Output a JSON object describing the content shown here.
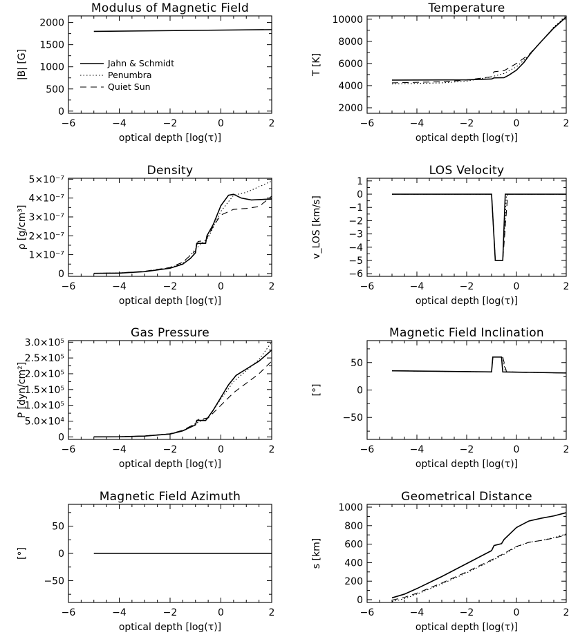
{
  "chart_data": [
    {
      "type": "line",
      "title": "Modulus of Magnetic Field",
      "xlabel": "optical depth [log(τ)]",
      "ylabel": "|B| [G]",
      "xlim": [
        -6,
        2
      ],
      "ylim": [
        -50,
        2150
      ],
      "xticks": [
        -6,
        -4,
        -2,
        0,
        2
      ],
      "yticks": [
        0,
        500,
        1000,
        1500,
        2000
      ],
      "ytick_labels": [
        "0",
        "500",
        "1000",
        "1500",
        "2000"
      ],
      "legend": {
        "placement": "left-middle",
        "entries": [
          {
            "name": "Jahn & Schmidt",
            "style": "solid"
          },
          {
            "name": "Penumbra",
            "style": "dotted"
          },
          {
            "name": "Quiet Sun",
            "style": "dashed"
          }
        ]
      },
      "series": [
        {
          "style": "solid",
          "x": [
            -5,
            2
          ],
          "y": [
            1800,
            1840
          ]
        }
      ]
    },
    {
      "type": "line",
      "title": "Temperature",
      "xlabel": "optical depth [log(τ)]",
      "ylabel": "T [K]",
      "xlim": [
        -6,
        2
      ],
      "ylim": [
        1500,
        10300
      ],
      "xticks": [
        -6,
        -4,
        -2,
        0,
        2
      ],
      "yticks": [
        2000,
        4000,
        6000,
        8000,
        10000
      ],
      "ytick_labels": [
        "2000",
        "4000",
        "6000",
        "8000",
        "10000"
      ],
      "series": [
        {
          "style": "solid",
          "x": [
            -5,
            -2,
            -1,
            -0.9,
            -0.5,
            -0.3,
            0,
            0.3,
            0.6,
            1,
            1.5,
            2
          ],
          "y": [
            4500,
            4520,
            4600,
            4700,
            4720,
            4950,
            5400,
            6100,
            7000,
            8000,
            9200,
            10200
          ]
        },
        {
          "style": "dotted",
          "x": [
            -5,
            -3,
            -2,
            -1,
            -0.5,
            0,
            0.5,
            1,
            1.5,
            2
          ],
          "y": [
            4150,
            4250,
            4400,
            4800,
            5100,
            5700,
            6700,
            8000,
            9300,
            10300
          ]
        },
        {
          "style": "dashed",
          "x": [
            -5,
            -3,
            -2,
            -1,
            -0.9,
            -0.5,
            -0.3,
            0,
            0.5,
            1,
            1.5,
            2
          ],
          "y": [
            4250,
            4350,
            4500,
            4800,
            5250,
            5350,
            5600,
            6000,
            6800,
            8000,
            9200,
            10200
          ]
        }
      ]
    },
    {
      "type": "line",
      "title": "Density",
      "xlabel": "optical depth [log(τ)]",
      "ylabel": "ρ [g/cm³]",
      "xlim": [
        -6,
        2
      ],
      "ylim": [
        -1.5e-08,
        5.05e-07
      ],
      "xticks": [
        -6,
        -4,
        -2,
        0,
        2
      ],
      "yticks": [
        0,
        1e-07,
        2e-07,
        3e-07,
        4e-07,
        5e-07
      ],
      "ytick_labels": [
        "0",
        "1×10⁻⁷",
        "2×10⁻⁷",
        "3×10⁻⁷",
        "4×10⁻⁷",
        "5×10⁻⁷"
      ],
      "series": [
        {
          "style": "solid",
          "x": [
            -5,
            -4,
            -3,
            -2,
            -1.5,
            -1.2,
            -1,
            -0.95,
            -0.6,
            -0.55,
            -0.3,
            0,
            0.3,
            0.5,
            0.8,
            1.2,
            2
          ],
          "y": [
            1e-09,
            2e-09,
            1e-08,
            2.8e-08,
            5e-08,
            8e-08,
            1.1e-07,
            1.6e-07,
            1.6e-07,
            2e-07,
            2.6e-07,
            3.6e-07,
            4.15e-07,
            4.2e-07,
            4e-07,
            3.9e-07,
            3.95e-07
          ]
        },
        {
          "style": "dotted",
          "x": [
            -5,
            -4,
            -3,
            -2,
            -1.5,
            -1,
            -0.5,
            0,
            0.5,
            1,
            2
          ],
          "y": [
            1e-09,
            3e-09,
            1.1e-08,
            3e-08,
            5.5e-08,
            1.3e-07,
            1.9e-07,
            3.3e-07,
            4.15e-07,
            4.3e-07,
            4.9e-07
          ]
        },
        {
          "style": "dashed",
          "x": [
            -5,
            -4,
            -3,
            -2,
            -1.5,
            -1,
            -0.9,
            -0.6,
            -0.5,
            -0.3,
            0,
            0.5,
            1,
            1.5,
            2
          ],
          "y": [
            1e-09,
            3e-09,
            1.2e-08,
            3.2e-08,
            6e-08,
            1.2e-07,
            1.7e-07,
            1.75e-07,
            2e-07,
            2.5e-07,
            3.1e-07,
            3.4e-07,
            3.45e-07,
            3.55e-07,
            4.1e-07
          ]
        }
      ]
    },
    {
      "type": "line",
      "title": "LOS Velocity",
      "xlabel": "optical depth [log(τ)]",
      "ylabel": "v_LOS [km/s]",
      "xlim": [
        -6,
        2
      ],
      "ylim": [
        -6.2,
        1.2
      ],
      "xticks": [
        -6,
        -4,
        -2,
        0,
        2
      ],
      "yticks": [
        -6,
        -5,
        -4,
        -3,
        -2,
        -1,
        0,
        1
      ],
      "ytick_labels": [
        "−6",
        "−5",
        "−4",
        "−3",
        "−2",
        "−1",
        "0",
        "1"
      ],
      "series": [
        {
          "style": "solid",
          "x": [
            -5,
            -1.0,
            -0.85,
            -0.55,
            -0.45,
            2
          ],
          "y": [
            0,
            0,
            -5,
            -5,
            0,
            0
          ]
        },
        {
          "style": "dotted",
          "x": [
            -5,
            -1.0,
            -0.85,
            -0.55,
            -0.4,
            2
          ],
          "y": [
            0,
            0,
            -5,
            -5,
            0,
            0
          ]
        },
        {
          "style": "dashed",
          "x": [
            -5,
            -1.0,
            -0.85,
            -0.55,
            -0.35,
            2
          ],
          "y": [
            0,
            0,
            -5,
            -5,
            0,
            0
          ]
        }
      ]
    },
    {
      "type": "line",
      "title": "Gas Pressure",
      "xlabel": "optical depth [log(τ)]",
      "ylabel": "P [dyn/cm²]",
      "xlim": [
        -6,
        2
      ],
      "ylim": [
        -8000,
        305000
      ],
      "xticks": [
        -6,
        -4,
        -2,
        0,
        2
      ],
      "yticks": [
        0,
        50000,
        100000,
        150000,
        200000,
        250000,
        300000
      ],
      "ytick_labels": [
        "0",
        "5.0×10⁴",
        "1.0×10⁵",
        "1.5×10⁵",
        "2.0×10⁵",
        "2.5×10⁵",
        "3.0×10⁵"
      ],
      "series": [
        {
          "style": "solid",
          "x": [
            -5,
            -4,
            -3,
            -2,
            -1.5,
            -1,
            -0.95,
            -0.6,
            -0.5,
            -0.3,
            0,
            0.3,
            0.6,
            1,
            1.5,
            2
          ],
          "y": [
            100,
            400,
            2500,
            9000,
            19000,
            38000,
            52000,
            52000,
            62000,
            85000,
            125000,
            165000,
            195000,
            215000,
            240000,
            275000
          ]
        },
        {
          "style": "dotted",
          "x": [
            -5,
            -4,
            -3,
            -2,
            -1.5,
            -1,
            -0.5,
            0,
            0.5,
            1,
            1.5,
            2
          ],
          "y": [
            100,
            500,
            2800,
            9500,
            20000,
            42000,
            62000,
            120000,
            175000,
            210000,
            245000,
            300000
          ]
        },
        {
          "style": "dashed",
          "x": [
            -5,
            -4,
            -3,
            -2,
            -1.5,
            -1,
            -0.9,
            -0.5,
            0,
            0.5,
            1,
            1.5,
            2
          ],
          "y": [
            100,
            500,
            3000,
            10000,
            21000,
            42000,
            55000,
            60000,
            100000,
            140000,
            170000,
            200000,
            240000
          ]
        }
      ]
    },
    {
      "type": "line",
      "title": "Magnetic Field Inclination",
      "xlabel": "optical depth [log(τ)]",
      "ylabel": "[°]",
      "xlim": [
        -6,
        2
      ],
      "ylim": [
        -90,
        90
      ],
      "xticks": [
        -6,
        -4,
        -2,
        0,
        2
      ],
      "yticks": [
        -50,
        0,
        50
      ],
      "ytick_labels": [
        "−50",
        "0",
        "50"
      ],
      "series": [
        {
          "style": "solid",
          "x": [
            -5,
            -1.0,
            -0.95,
            -0.6,
            -0.55,
            2
          ],
          "y": [
            35,
            33,
            60,
            60,
            33,
            31
          ]
        },
        {
          "style": "dotted",
          "x": [
            -5,
            -1.0,
            -0.95,
            -0.55,
            -0.45,
            2
          ],
          "y": [
            35,
            33,
            60,
            60,
            33,
            31
          ]
        },
        {
          "style": "dashed",
          "x": [
            -5,
            -1.0,
            -0.95,
            -0.55,
            -0.4,
            2
          ],
          "y": [
            35,
            33,
            60,
            60,
            33,
            31
          ]
        }
      ]
    },
    {
      "type": "line",
      "title": "Magnetic Field Azimuth",
      "xlabel": "optical depth [log(τ)]",
      "ylabel": "[°]",
      "xlim": [
        -6,
        2
      ],
      "ylim": [
        -90,
        90
      ],
      "xticks": [
        -6,
        -4,
        -2,
        0,
        2
      ],
      "yticks": [
        -50,
        0,
        50
      ],
      "ytick_labels": [
        "−50",
        "0",
        "50"
      ],
      "series": [
        {
          "style": "solid",
          "x": [
            -5,
            2
          ],
          "y": [
            0,
            0
          ]
        }
      ]
    },
    {
      "type": "line",
      "title": "Geometrical Distance",
      "xlabel": "optical depth [log(τ)]",
      "ylabel": "s [km]",
      "xlim": [
        -6,
        2
      ],
      "ylim": [
        -30,
        1030
      ],
      "xticks": [
        -6,
        -4,
        -2,
        0,
        2
      ],
      "yticks": [
        0,
        200,
        400,
        600,
        800,
        1000
      ],
      "ytick_labels": [
        "0",
        "200",
        "400",
        "600",
        "800",
        "1000"
      ],
      "series": [
        {
          "style": "solid",
          "x": [
            -5,
            -4.5,
            -4,
            -3,
            -2,
            -1,
            -0.9,
            -0.6,
            -0.5,
            0,
            0.5,
            1,
            1.5,
            2
          ],
          "y": [
            20,
            60,
            120,
            250,
            390,
            530,
            585,
            605,
            650,
            780,
            850,
            880,
            905,
            940
          ]
        },
        {
          "style": "dotted",
          "x": [
            -5,
            -4.5,
            -4,
            -3,
            -2,
            -1,
            -0.5,
            0,
            0.5,
            1,
            1.5,
            2
          ],
          "y": [
            -20,
            10,
            60,
            170,
            290,
            420,
            490,
            570,
            620,
            640,
            670,
            710
          ]
        },
        {
          "style": "dashed",
          "x": [
            -5,
            -4.5,
            -4,
            -3,
            -2,
            -1,
            -0.5,
            0,
            0.5,
            1,
            1.5,
            2
          ],
          "y": [
            -5,
            25,
            70,
            180,
            300,
            430,
            500,
            575,
            620,
            640,
            665,
            700
          ]
        }
      ]
    }
  ]
}
